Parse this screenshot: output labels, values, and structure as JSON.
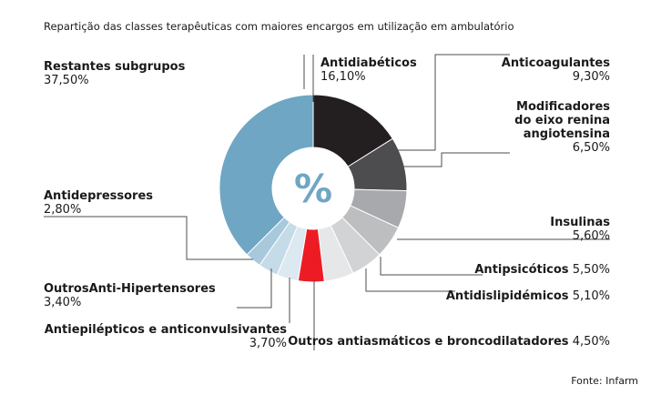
{
  "title": "Repartição das classes terapêuticas com maiores encargos em utilização em ambulatório",
  "source": "Fonte: Infarm",
  "center_symbol": "%",
  "chart_data": {
    "type": "pie",
    "title": "Repartição das classes terapêuticas com maiores encargos em utilização em ambulatório",
    "style": "donut",
    "slices": [
      {
        "name": "Antidiabéticos",
        "value": 16.1,
        "label": "16,10%",
        "color": "#231f20"
      },
      {
        "name": "Anticoagulantes",
        "value": 9.3,
        "label": "9,30%",
        "color": "#4d4d4f"
      },
      {
        "name": "Modificadores do eixo renina angiotensina",
        "value": 6.5,
        "label": "6,50%",
        "color": "#a7a9ac"
      },
      {
        "name": "Insulinas",
        "value": 5.6,
        "label": "5,60%",
        "color": "#bcbec0"
      },
      {
        "name": "Antipsicóticos",
        "value": 5.5,
        "label": "5,50%",
        "color": "#d1d3d4"
      },
      {
        "name": "Antidislipidémicos",
        "value": 5.1,
        "label": "5,10%",
        "color": "#e6e7e8"
      },
      {
        "name": "Outros antiasmáticos e broncodilatadores",
        "value": 4.5,
        "label": "4,50%",
        "color": "#ed1c24"
      },
      {
        "name": "Antiepilépticos e anticonvulsivantes",
        "value": 3.7,
        "label": "3,70%",
        "color": "#dde9f1"
      },
      {
        "name": "OutrosAnti-Hipertensores",
        "value": 3.4,
        "label": "3,40%",
        "color": "#c5dbe7"
      },
      {
        "name": "Antidepressores",
        "value": 2.8,
        "label": "2,80%",
        "color": "#a8c9dc"
      },
      {
        "name": "Restantes subgrupos",
        "value": 37.5,
        "label": "37,50%",
        "color": "#6fa6c4"
      }
    ]
  }
}
